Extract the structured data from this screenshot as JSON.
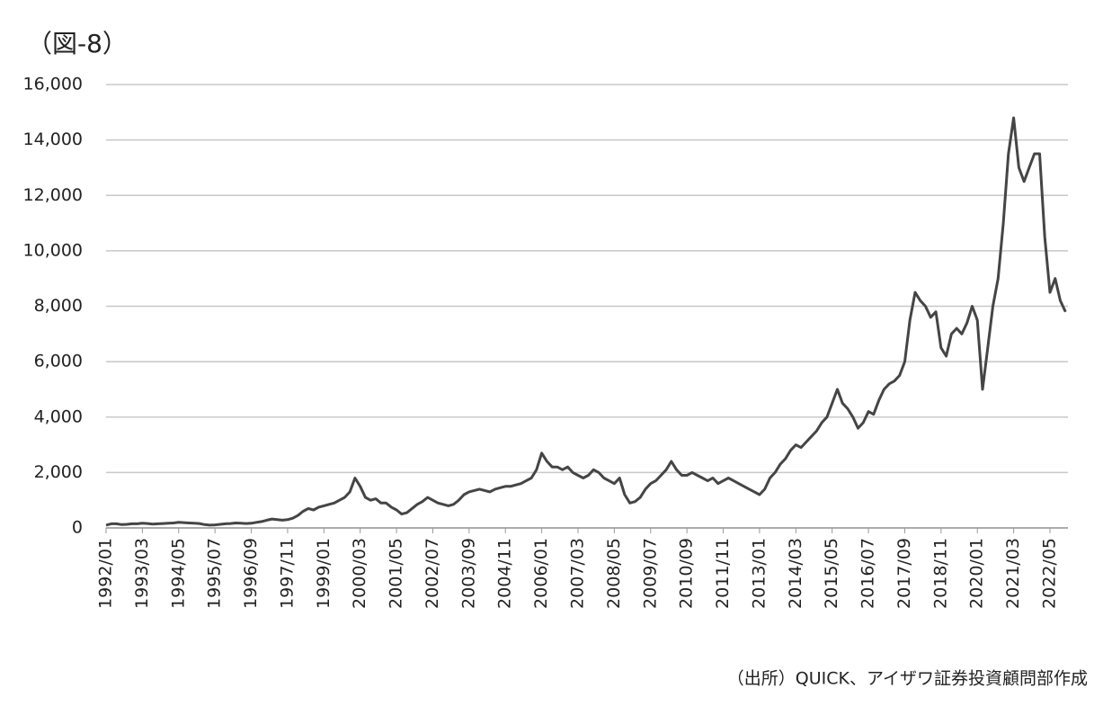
{
  "chart_data": {
    "type": "line",
    "title": "（図-8）",
    "source": "（出所）QUICK、アイザワ証券投資顧問部作成",
    "categories": [
      "1992/01",
      null,
      null,
      null,
      null,
      null,
      null,
      "1993/03",
      null,
      null,
      null,
      null,
      null,
      null,
      "1994/05",
      null,
      null,
      null,
      null,
      null,
      null,
      "1995/07",
      null,
      null,
      null,
      null,
      null,
      null,
      "1996/09",
      null,
      null,
      null,
      null,
      null,
      null,
      "1997/11",
      null,
      null,
      null,
      null,
      null,
      null,
      "1999/01",
      null,
      null,
      null,
      null,
      null,
      null,
      "2000/03",
      null,
      null,
      null,
      null,
      null,
      null,
      "2001/05",
      null,
      null,
      null,
      null,
      null,
      null,
      "2002/07",
      null,
      null,
      null,
      null,
      null,
      null,
      "2003/09",
      null,
      null,
      null,
      null,
      null,
      null,
      "2004/11",
      null,
      null,
      null,
      null,
      null,
      null,
      "2006/01",
      null,
      null,
      null,
      null,
      null,
      null,
      "2007/03",
      null,
      null,
      null,
      null,
      null,
      null,
      "2008/05",
      null,
      null,
      null,
      null,
      null,
      null,
      "2009/07",
      null,
      null,
      null,
      null,
      null,
      null,
      "2010/09",
      null,
      null,
      null,
      null,
      null,
      null,
      "2011/11",
      null,
      null,
      null,
      null,
      null,
      null,
      "2013/01",
      null,
      null,
      null,
      null,
      null,
      null,
      "2014/03",
      null,
      null,
      null,
      null,
      null,
      null,
      "2015/05",
      null,
      null,
      null,
      null,
      null,
      null,
      "2016/07",
      null,
      null,
      null,
      null,
      null,
      null,
      "2017/09",
      null,
      null,
      null,
      null,
      null,
      null,
      "2018/11",
      null,
      null,
      null,
      null,
      null,
      null,
      "2020/01",
      null,
      null,
      null,
      null,
      null,
      null,
      "2021/03",
      null,
      null,
      null,
      null,
      null,
      null,
      "2022/05",
      null,
      null,
      null
    ],
    "series": [
      {
        "color": "#454545",
        "values": [
          100,
          150,
          150,
          120,
          130,
          150,
          150,
          170,
          160,
          140,
          150,
          160,
          170,
          180,
          200,
          190,
          180,
          170,
          160,
          120,
          100,
          110,
          130,
          150,
          160,
          180,
          170,
          160,
          170,
          200,
          230,
          280,
          320,
          300,
          280,
          300,
          350,
          450,
          600,
          700,
          650,
          750,
          800,
          850,
          900,
          1000,
          1100,
          1300,
          1800,
          1500,
          1100,
          1000,
          1050,
          900,
          900,
          750,
          650,
          500,
          550,
          700,
          850,
          950,
          1100,
          1000,
          900,
          850,
          800,
          850,
          1000,
          1200,
          1300,
          1350,
          1400,
          1350,
          1300,
          1400,
          1450,
          1500,
          1500,
          1550,
          1600,
          1700,
          1800,
          2100,
          2700,
          2400,
          2200,
          2200,
          2100,
          2200,
          2000,
          1900,
          1800,
          1900,
          2100,
          2000,
          1800,
          1700,
          1600,
          1800,
          1200,
          900,
          950,
          1100,
          1400,
          1600,
          1700,
          1900,
          2100,
          2400,
          2100,
          1900,
          1900,
          2000,
          1900,
          1800,
          1700,
          1800,
          1600,
          1700,
          1800,
          1700,
          1600,
          1500,
          1400,
          1300,
          1200,
          1400,
          1800,
          2000,
          2300,
          2500,
          2800,
          3000,
          2900,
          3100,
          3300,
          3500,
          3800,
          4000,
          4500,
          5000,
          4500,
          4300,
          4000,
          3600,
          3800,
          4200,
          4100,
          4600,
          5000,
          5200,
          5300,
          5500,
          6000,
          7500,
          8500,
          8200,
          8000,
          7600,
          7800,
          6500,
          6200,
          7000,
          7200,
          7000,
          7400,
          8000,
          7500,
          5000,
          6500,
          8000,
          9000,
          11000,
          13500,
          14800,
          13000,
          12500,
          13000,
          13500,
          13500,
          10500,
          8500,
          9000,
          8200,
          7800
        ]
      }
    ],
    "ylim": [
      0,
      16000
    ],
    "yticks": [
      0,
      {
        "value": 2000,
        "label": "2,000"
      },
      {
        "value": 4000,
        "label": "4,000"
      },
      {
        "value": 6000,
        "label": "6,000"
      },
      {
        "value": 8000,
        "label": "8,000"
      },
      {
        "value": 10000,
        "label": "10,000"
      },
      {
        "value": 12000,
        "label": "12,000"
      },
      {
        "value": 14000,
        "label": "14,000"
      },
      {
        "value": 16000,
        "label": "16,000"
      }
    ],
    "grid": true
  }
}
